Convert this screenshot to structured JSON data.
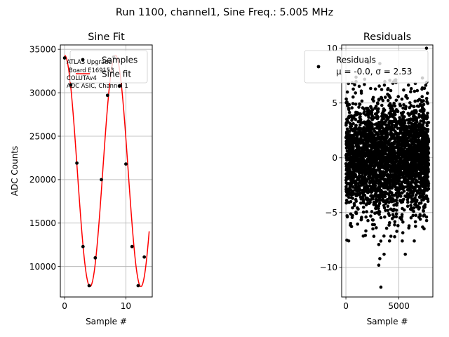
{
  "figure_title": "Run 1100, channel1, Sine Freq.: 5.005 MHz",
  "colors": {
    "fit": "#ff0000",
    "points": "#000000",
    "grid": "#b0b0b0"
  },
  "chart_data": [
    {
      "type": "line",
      "title": "Sine Fit",
      "xlabel": "Sample #",
      "ylabel": "ADC Counts",
      "xlim": [
        -0.7,
        14.3
      ],
      "ylim": [
        6500,
        35500
      ],
      "xticks": [
        0,
        10
      ],
      "yticks": [
        10000,
        15000,
        20000,
        25000,
        30000,
        35000
      ],
      "grid": true,
      "legend_position": "top-right",
      "legend": [
        "Samples",
        "Sine fit"
      ],
      "annotation": [
        "ATLAS Upgrade",
        "Board E169153",
        "COLUTAv4",
        "ADC ASIC, Channel 1"
      ],
      "series": [
        {
          "name": "Samples",
          "kind": "scatter",
          "x": [
            0,
            1,
            2,
            3,
            4,
            5,
            6,
            7,
            8,
            9,
            10,
            11,
            12,
            13
          ],
          "y": [
            34000,
            30900,
            21900,
            12300,
            7800,
            11000,
            20000,
            29700,
            34100,
            30800,
            21800,
            12300,
            7800,
            11100
          ]
        },
        {
          "name": "Sine fit",
          "kind": "line",
          "model": {
            "offset": 21000,
            "amplitude": 13300,
            "period_samples": 8.3,
            "phase_peak_sample": 0,
            "x_range": [
              0,
              13.8
            ]
          }
        }
      ]
    },
    {
      "type": "scatter",
      "title": "Residuals",
      "xlabel": "Sample #",
      "ylabel": "",
      "xlim": [
        -400,
        8200
      ],
      "ylim": [
        -12.7,
        10.3
      ],
      "xticks": [
        0,
        5000
      ],
      "yticks": [
        -10,
        -5,
        0,
        5,
        10
      ],
      "grid": true,
      "legend_position": "top-right",
      "legend": [
        "Residuals",
        "μ = -0.0, σ = 2.53"
      ],
      "stats": {
        "mean": -0.0,
        "std": 2.53,
        "n": 8000,
        "x_max": 7800,
        "min": -11.8,
        "max": 10.0
      },
      "outliers": [
        {
          "x": 3300,
          "y": -11.8
        },
        {
          "x": 3100,
          "y": -9.8
        },
        {
          "x": 3200,
          "y": -9.2
        },
        {
          "x": 3600,
          "y": -8.8
        },
        {
          "x": 5600,
          "y": -8.8
        },
        {
          "x": 2100,
          "y": 8.7
        },
        {
          "x": 3200,
          "y": 8.6
        },
        {
          "x": 7600,
          "y": 10.0
        }
      ]
    }
  ]
}
